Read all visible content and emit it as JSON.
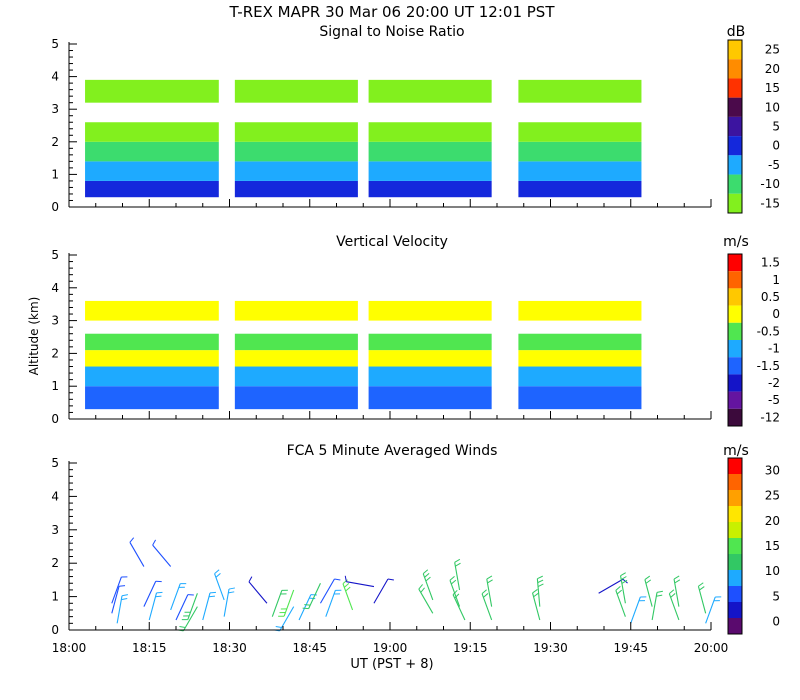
{
  "figure_title": "T-REX   MAPR 30 Mar 06   20:00 UT   12:01   PST",
  "y_axis_label": "Altitude (km)",
  "x_axis_label": "UT  (PST + 8)",
  "chart_data": [
    {
      "type": "heatmap",
      "title": "Signal to Noise Ratio",
      "colorbar_label": "dB",
      "colorbar_ticks": [
        "25",
        "20",
        "15",
        "10",
        "5",
        "0",
        "-5",
        "-10",
        "-15"
      ],
      "colors": [
        "#FFC800",
        "#FF8C00",
        "#FF3200",
        "#4B0A4B",
        "#3C14A0",
        "#1428DC",
        "#1EAAFF",
        "#3CDC6E",
        "#82F01E"
      ],
      "x_range_minutes": [
        0,
        120
      ],
      "x_ticks": [
        "18:00",
        "18:15",
        "18:30",
        "18:45",
        "19:00",
        "19:15",
        "19:30",
        "19:45",
        "20:00"
      ],
      "y_range_km": [
        0,
        5
      ],
      "y_ticks": [
        "0",
        "1",
        "2",
        "3",
        "4",
        "5"
      ],
      "data_segments_minutes": [
        [
          3,
          28
        ],
        [
          31,
          54
        ],
        [
          56,
          79
        ],
        [
          84,
          107
        ]
      ],
      "profile_km": [
        {
          "alt": [
            0.3,
            0.8
          ],
          "value": 0
        },
        {
          "alt": [
            0.8,
            1.4
          ],
          "value": -5
        },
        {
          "alt": [
            1.4,
            2.0
          ],
          "value": -10
        },
        {
          "alt": [
            2.0,
            2.6
          ],
          "value": -15
        },
        {
          "alt": [
            3.2,
            3.9
          ],
          "value": -15
        }
      ]
    },
    {
      "type": "heatmap",
      "title": "Vertical Velocity",
      "colorbar_label": "m/s",
      "colorbar_ticks": [
        "1.5",
        "1",
        "0.5",
        "0",
        "-0.5",
        "-1",
        "-1.5",
        "-2",
        "-5",
        "-12"
      ],
      "colors": [
        "#FF0000",
        "#FF6400",
        "#FFC800",
        "#FFFF00",
        "#50E650",
        "#1EAAFF",
        "#1E64FF",
        "#1414C8",
        "#6414A0",
        "#3C0A3C"
      ],
      "x_range_minutes": [
        0,
        120
      ],
      "x_ticks": [
        "18:00",
        "18:15",
        "18:30",
        "18:45",
        "19:00",
        "19:15",
        "19:30",
        "19:45",
        "20:00"
      ],
      "y_range_km": [
        0,
        5
      ],
      "y_ticks": [
        "0",
        "1",
        "2",
        "3",
        "4",
        "5"
      ],
      "data_segments_minutes": [
        [
          3,
          28
        ],
        [
          31,
          54
        ],
        [
          56,
          79
        ],
        [
          84,
          107
        ]
      ],
      "profile_km": [
        {
          "alt": [
            0.3,
            1.0
          ],
          "value": -1.5
        },
        {
          "alt": [
            1.0,
            1.6
          ],
          "value": -1
        },
        {
          "alt": [
            1.6,
            2.1
          ],
          "value": 0
        },
        {
          "alt": [
            2.1,
            2.6
          ],
          "value": -0.5
        },
        {
          "alt": [
            3.0,
            3.6
          ],
          "value": 0
        }
      ]
    },
    {
      "type": "scatter",
      "title": "FCA 5 Minute Averaged Winds",
      "colorbar_label": "m/s",
      "colorbar_ticks": [
        "30",
        "25",
        "20",
        "15",
        "10",
        "5",
        "0"
      ],
      "colors": [
        "#FF0000",
        "#FF6400",
        "#FFA000",
        "#FFE600",
        "#C8F000",
        "#50E650",
        "#32C864",
        "#1EAAFF",
        "#1E50FF",
        "#1414C8",
        "#5A0A6E"
      ],
      "x_range_minutes": [
        0,
        120
      ],
      "x_ticks": [
        "18:00",
        "18:15",
        "18:30",
        "18:45",
        "19:00",
        "19:15",
        "19:30",
        "19:45",
        "20:00"
      ],
      "y_range_km": [
        0,
        5
      ],
      "y_ticks": [
        "0",
        "1",
        "2",
        "3",
        "4",
        "5"
      ],
      "barbs": [
        {
          "t": 8,
          "alt": 0.8,
          "speed": 6,
          "dir": 20
        },
        {
          "t": 8,
          "alt": 0.5,
          "speed": 7,
          "dir": 15
        },
        {
          "t": 9,
          "alt": 0.2,
          "speed": 8,
          "dir": 10
        },
        {
          "t": 14,
          "alt": 1.9,
          "speed": 6,
          "dir": 330
        },
        {
          "t": 14,
          "alt": 0.7,
          "speed": 7,
          "dir": 25
        },
        {
          "t": 15,
          "alt": 0.3,
          "speed": 8,
          "dir": 15
        },
        {
          "t": 19,
          "alt": 1.9,
          "speed": 6,
          "dir": 320
        },
        {
          "t": 19,
          "alt": 0.6,
          "speed": 8,
          "dir": 20
        },
        {
          "t": 20,
          "alt": 0.3,
          "speed": 7,
          "dir": 25
        },
        {
          "t": 24,
          "alt": 1.1,
          "speed": 13,
          "dir": 200
        },
        {
          "t": 24,
          "alt": 0.7,
          "speed": 11,
          "dir": 210
        },
        {
          "t": 25,
          "alt": 0.3,
          "speed": 9,
          "dir": 15
        },
        {
          "t": 29,
          "alt": 0.9,
          "speed": 10,
          "dir": 340
        },
        {
          "t": 29,
          "alt": 0.4,
          "speed": 9,
          "dir": 10
        },
        {
          "t": 37,
          "alt": 0.8,
          "speed": 4,
          "dir": 320
        },
        {
          "t": 38,
          "alt": 0.4,
          "speed": 12,
          "dir": 20
        },
        {
          "t": 42,
          "alt": 1.2,
          "speed": 14,
          "dir": 200
        },
        {
          "t": 42,
          "alt": 0.7,
          "speed": 10,
          "dir": 210
        },
        {
          "t": 43,
          "alt": 0.3,
          "speed": 8,
          "dir": 25
        },
        {
          "t": 47,
          "alt": 1.4,
          "speed": 12,
          "dir": 205
        },
        {
          "t": 47,
          "alt": 0.8,
          "speed": 6,
          "dir": 30
        },
        {
          "t": 48,
          "alt": 0.4,
          "speed": 9,
          "dir": 20
        },
        {
          "t": 53,
          "alt": 0.6,
          "speed": 16,
          "dir": 340
        },
        {
          "t": 57,
          "alt": 1.3,
          "speed": 2,
          "dir": 280
        },
        {
          "t": 57,
          "alt": 0.8,
          "speed": 4,
          "dir": 30
        },
        {
          "t": 68,
          "alt": 0.9,
          "speed": 13,
          "dir": 340
        },
        {
          "t": 68,
          "alt": 0.5,
          "speed": 12,
          "dir": 330
        },
        {
          "t": 73,
          "alt": 1.2,
          "speed": 12,
          "dir": 350
        },
        {
          "t": 73,
          "alt": 0.7,
          "speed": 11,
          "dir": 340
        },
        {
          "t": 74,
          "alt": 0.3,
          "speed": 11,
          "dir": 335
        },
        {
          "t": 79,
          "alt": 0.7,
          "speed": 12,
          "dir": 350
        },
        {
          "t": 79,
          "alt": 0.3,
          "speed": 11,
          "dir": 340
        },
        {
          "t": 88,
          "alt": 0.7,
          "speed": 13,
          "dir": 355
        },
        {
          "t": 88,
          "alt": 0.3,
          "speed": 12,
          "dir": 345
        },
        {
          "t": 99,
          "alt": 1.1,
          "speed": 4,
          "dir": 60
        },
        {
          "t": 104,
          "alt": 0.8,
          "speed": 13,
          "dir": 350
        },
        {
          "t": 104,
          "alt": 0.4,
          "speed": 11,
          "dir": 340
        },
        {
          "t": 105,
          "alt": 0.2,
          "speed": 10,
          "dir": 20
        },
        {
          "t": 109,
          "alt": 0.7,
          "speed": 12,
          "dir": 345
        },
        {
          "t": 109,
          "alt": 0.3,
          "speed": 11,
          "dir": 10
        },
        {
          "t": 114,
          "alt": 0.7,
          "speed": 12,
          "dir": 350
        },
        {
          "t": 114,
          "alt": 0.3,
          "speed": 11,
          "dir": 340
        },
        {
          "t": 119,
          "alt": 0.5,
          "speed": 11,
          "dir": 345
        },
        {
          "t": 119,
          "alt": 0.2,
          "speed": 9,
          "dir": 20
        }
      ]
    }
  ]
}
